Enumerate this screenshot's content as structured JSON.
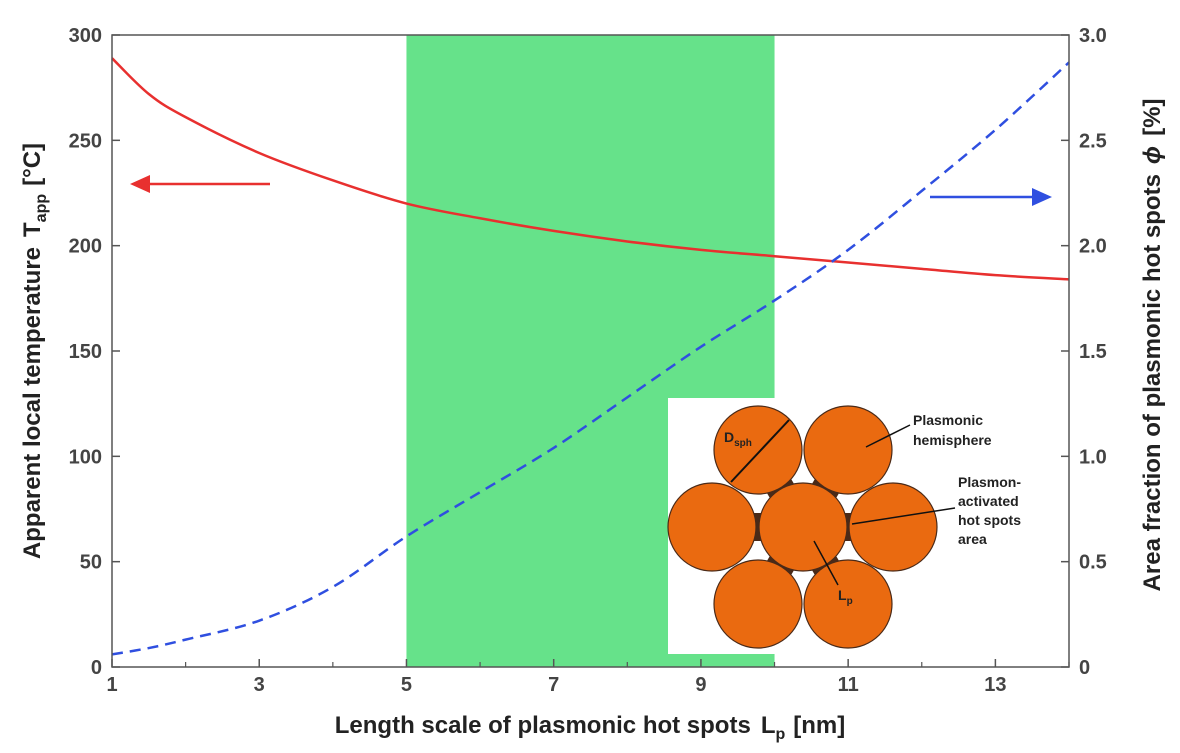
{
  "chart_data": {
    "type": "line",
    "x": [
      1,
      1.5,
      2,
      3,
      4,
      5,
      6,
      7,
      8,
      9,
      10,
      11,
      12,
      13,
      14
    ],
    "xlabel": "Length scale of plasmonic hot spots",
    "xlabel_sub": "L",
    "xlabel_subscript": "p",
    "xlabel_unit": "[nm]",
    "ylabel_left": "Apparent local temperature",
    "ylabel_left_sym": "T",
    "ylabel_left_subscript": "app",
    "ylabel_left_unit": "[°C]",
    "ylabel_right": "Area fraction of plasmonic hot spots",
    "ylabel_right_sym": "ϕ",
    "ylabel_right_unit": "[%]",
    "xlim": [
      1,
      14
    ],
    "ylim_left": [
      0,
      300
    ],
    "ylim_right": [
      0,
      3.0
    ],
    "x_ticks": [
      "1",
      "3",
      "5",
      "7",
      "9",
      "11",
      "13"
    ],
    "y_ticks_left": [
      "0",
      "50",
      "100",
      "150",
      "200",
      "250",
      "300"
    ],
    "y_ticks_right": [
      "0",
      "0.5",
      "1.0",
      "1.5",
      "2.0",
      "2.5",
      "3.0"
    ],
    "highlight_band": {
      "x_start": 5,
      "x_end": 10,
      "color": "#66e28a"
    },
    "series": [
      {
        "axis": "left",
        "style": "solid",
        "color": "#e8302f",
        "values": [
          289,
          272,
          261,
          244,
          231,
          220,
          213,
          207,
          202,
          198,
          195,
          192,
          189,
          186,
          184
        ]
      },
      {
        "axis": "right",
        "style": "dashed",
        "color": "#2f4fe0",
        "values": [
          0.06,
          0.09,
          0.13,
          0.22,
          0.38,
          0.62,
          0.83,
          1.04,
          1.28,
          1.52,
          1.74,
          1.98,
          2.26,
          2.55,
          2.87
        ]
      }
    ],
    "arrows": [
      {
        "direction": "left",
        "color": "#e8302f"
      },
      {
        "direction": "right",
        "color": "#2f4fe0"
      }
    ],
    "inset": {
      "labels": {
        "d_sph": "D",
        "d_sph_sub": "sph",
        "plasmonic_line1": "Plasmonic",
        "plasmonic_line2": "hemisphere",
        "activated_line1": "Plasmon-",
        "activated_line2": "activated",
        "activated_line3": "hot spots",
        "activated_line4": "area",
        "lp": "L",
        "lp_sub": "p"
      },
      "circle_color": "#ea6a10",
      "hotspot_color": "#4a2a18"
    }
  }
}
